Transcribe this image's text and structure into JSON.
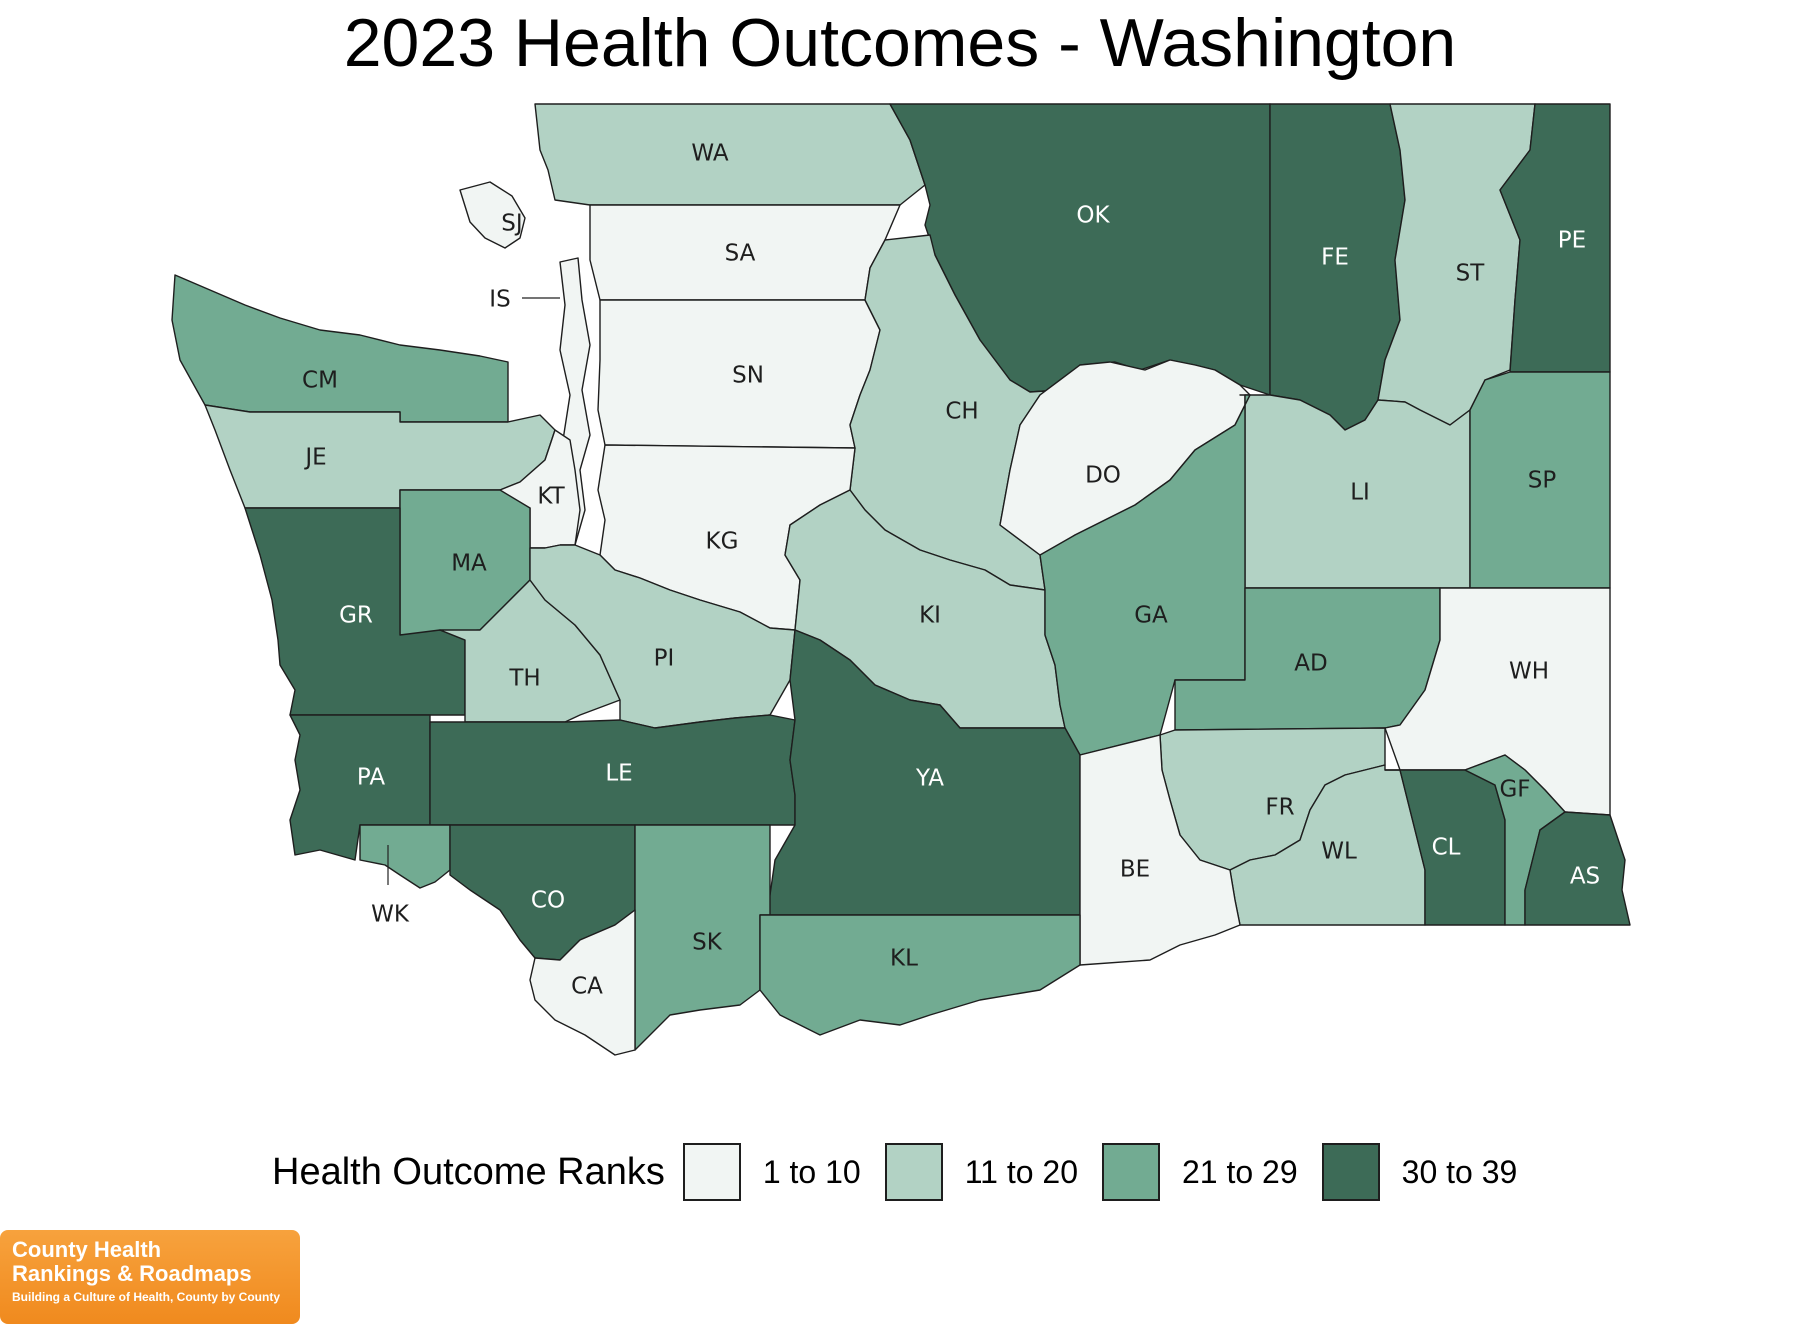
{
  "title": "2023 Health Outcomes - Washington",
  "colors": {
    "1": "#f1f5f3",
    "2": "#b2d2c4",
    "3": "#72ab92",
    "4": "#3d6b57"
  },
  "legend": {
    "title": "Health Outcome Ranks",
    "items": [
      {
        "label": "1 to 10",
        "color": "#f1f5f3"
      },
      {
        "label": "11 to 20",
        "color": "#b2d2c4"
      },
      {
        "label": "21 to 29",
        "color": "#72ab92"
      },
      {
        "label": "30 to 39",
        "color": "#3d6b57"
      }
    ]
  },
  "counties": [
    {
      "abbr": "WA",
      "bin": 2
    },
    {
      "abbr": "OK",
      "bin": 4
    },
    {
      "abbr": "FE",
      "bin": 4
    },
    {
      "abbr": "ST",
      "bin": 2
    },
    {
      "abbr": "PE",
      "bin": 4
    },
    {
      "abbr": "SJ",
      "bin": 1
    },
    {
      "abbr": "IS",
      "bin": 1
    },
    {
      "abbr": "SA",
      "bin": 1
    },
    {
      "abbr": "SN",
      "bin": 1
    },
    {
      "abbr": "CH",
      "bin": 2
    },
    {
      "abbr": "CM",
      "bin": 3
    },
    {
      "abbr": "JE",
      "bin": 2
    },
    {
      "abbr": "KT",
      "bin": 1
    },
    {
      "abbr": "KG",
      "bin": 1
    },
    {
      "abbr": "DO",
      "bin": 1
    },
    {
      "abbr": "LI",
      "bin": 2
    },
    {
      "abbr": "SP",
      "bin": 3
    },
    {
      "abbr": "MA",
      "bin": 3
    },
    {
      "abbr": "GR",
      "bin": 4
    },
    {
      "abbr": "TH",
      "bin": 2
    },
    {
      "abbr": "PI",
      "bin": 2
    },
    {
      "abbr": "KI",
      "bin": 2
    },
    {
      "abbr": "GA",
      "bin": 3
    },
    {
      "abbr": "AD",
      "bin": 3
    },
    {
      "abbr": "WH",
      "bin": 1
    },
    {
      "abbr": "PA",
      "bin": 4
    },
    {
      "abbr": "LE",
      "bin": 4
    },
    {
      "abbr": "YA",
      "bin": 4
    },
    {
      "abbr": "FR",
      "bin": 2
    },
    {
      "abbr": "WL",
      "bin": 2
    },
    {
      "abbr": "CL",
      "bin": 4
    },
    {
      "abbr": "GF",
      "bin": 3
    },
    {
      "abbr": "AS",
      "bin": 4
    },
    {
      "abbr": "WK",
      "bin": 3
    },
    {
      "abbr": "CO",
      "bin": 4
    },
    {
      "abbr": "BE",
      "bin": 1
    },
    {
      "abbr": "SK",
      "bin": 3
    },
    {
      "abbr": "KL",
      "bin": 3
    },
    {
      "abbr": "CA",
      "bin": 1
    }
  ],
  "logo": {
    "line1": "County Health",
    "line2": "Rankings & Roadmaps",
    "tagline": "Building a Culture of Health, County by County"
  }
}
